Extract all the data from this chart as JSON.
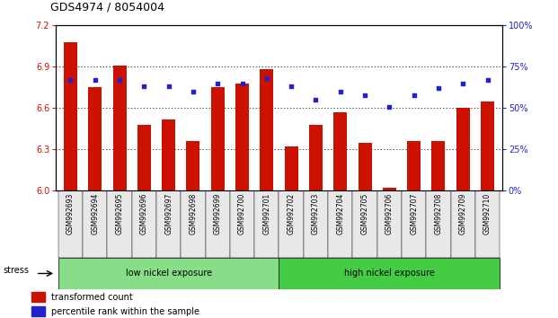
{
  "title": "GDS4974 / 8054004",
  "categories": [
    "GSM992693",
    "GSM992694",
    "GSM992695",
    "GSM992696",
    "GSM992697",
    "GSM992698",
    "GSM992699",
    "GSM992700",
    "GSM992701",
    "GSM992702",
    "GSM992703",
    "GSM992704",
    "GSM992705",
    "GSM992706",
    "GSM992707",
    "GSM992708",
    "GSM992709",
    "GSM992710"
  ],
  "bar_values": [
    7.08,
    6.75,
    6.91,
    6.48,
    6.52,
    6.36,
    6.75,
    6.78,
    6.88,
    6.32,
    6.48,
    6.57,
    6.35,
    6.02,
    6.36,
    6.36,
    6.6,
    6.65
  ],
  "dot_values": [
    67,
    67,
    67,
    63,
    63,
    60,
    65,
    65,
    68,
    63,
    55,
    60,
    58,
    51,
    58,
    62,
    65,
    67
  ],
  "ylim_left": [
    6.0,
    7.2
  ],
  "ylim_right": [
    0,
    100
  ],
  "yticks_left": [
    6.0,
    6.3,
    6.6,
    6.9,
    7.2
  ],
  "yticks_right": [
    0,
    25,
    50,
    75,
    100
  ],
  "bar_color": "#cc1100",
  "dot_color": "#2222cc",
  "bar_width": 0.55,
  "grid_color": "#000000",
  "group1_label": "low nickel exposure",
  "group2_label": "high nickel exposure",
  "group1_color": "#88dd88",
  "group2_color": "#44cc44",
  "stress_label": "stress",
  "group1_count": 9,
  "legend1": "transformed count",
  "legend2": "percentile rank within the sample",
  "bg_color": "#ffffff",
  "tick_label_color_left": "#cc1100",
  "tick_label_color_right": "#2222cc"
}
